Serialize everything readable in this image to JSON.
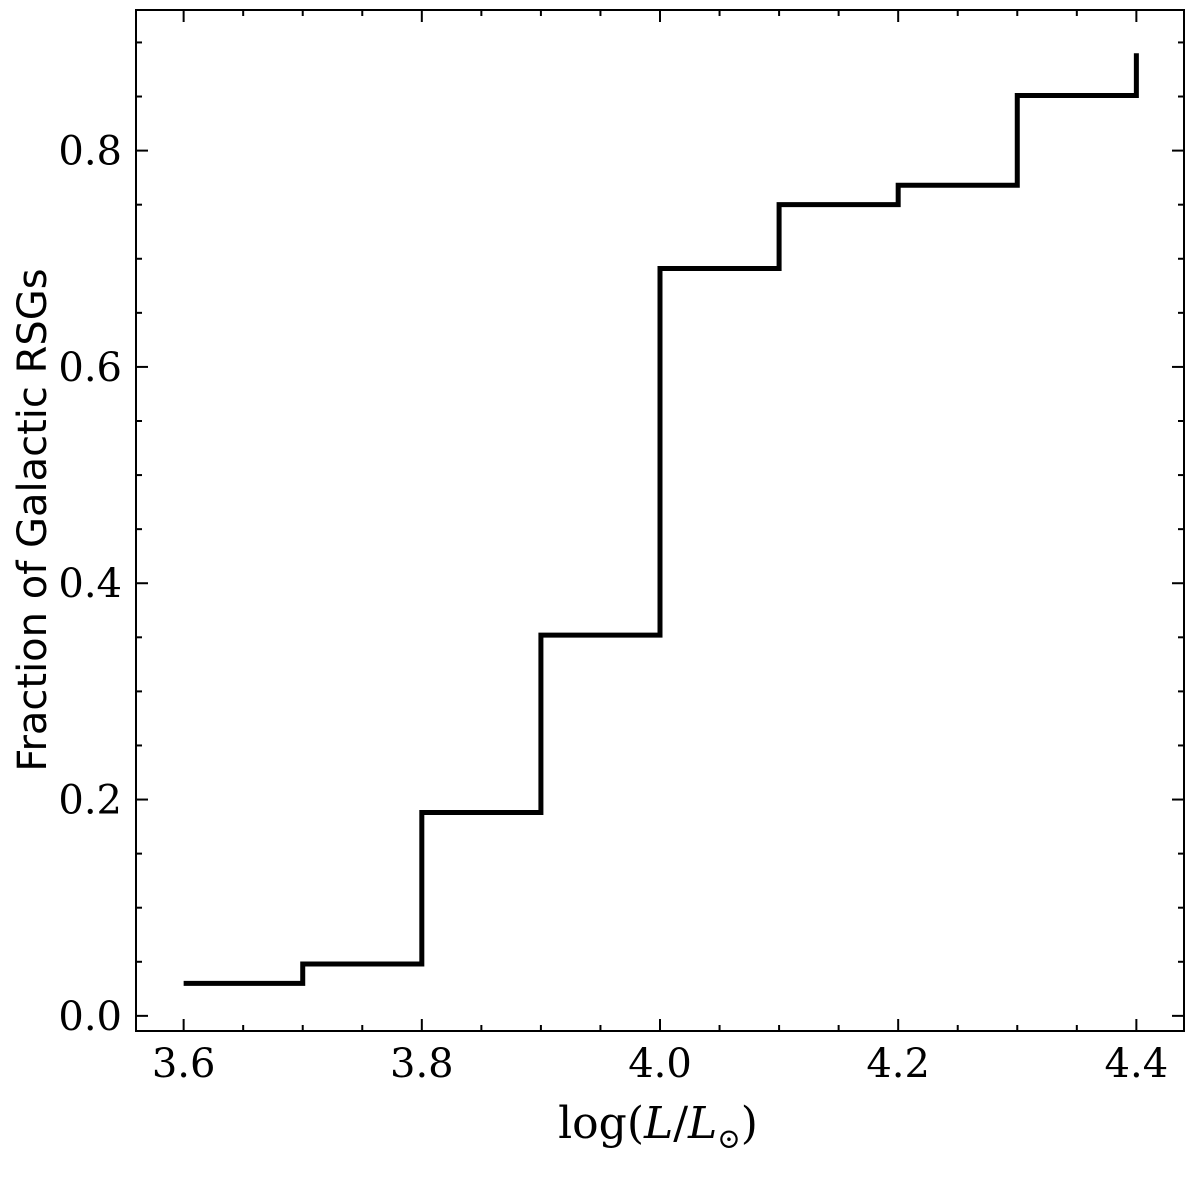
{
  "chart_data": {
    "type": "line",
    "drawstyle": "steps-post",
    "x": [
      3.6,
      3.7,
      3.8,
      3.9,
      4.0,
      4.1,
      4.2,
      4.3,
      4.4
    ],
    "series": [
      {
        "values": [
          0.03,
          0.048,
          0.188,
          0.352,
          0.691,
          0.75,
          0.768,
          0.851,
          0.89
        ]
      }
    ],
    "title": "",
    "xlabel_parts": {
      "prefix": "log(",
      "L": "L",
      "slash": "/",
      "Lsun": "L",
      "sun": "⊙",
      "suffix": ")"
    },
    "ylabel": "Fraction of Galactic RSGs",
    "xlim": [
      3.56,
      4.44
    ],
    "ylim": [
      -0.014,
      0.93
    ],
    "xticks": [
      {
        "value": 3.6,
        "label": "3.6"
      },
      {
        "value": 3.8,
        "label": "3.8"
      },
      {
        "value": 4.0,
        "label": "4.0"
      },
      {
        "value": 4.2,
        "label": "4.2"
      },
      {
        "value": 4.4,
        "label": "4.4"
      }
    ],
    "xminor": [
      3.65,
      3.7,
      3.75,
      3.85,
      3.9,
      3.95,
      4.05,
      4.1,
      4.15,
      4.25,
      4.3,
      4.35
    ],
    "yticks": [
      {
        "value": 0.0,
        "label": "0.0"
      },
      {
        "value": 0.2,
        "label": "0.2"
      },
      {
        "value": 0.4,
        "label": "0.4"
      },
      {
        "value": 0.6,
        "label": "0.6"
      },
      {
        "value": 0.8,
        "label": "0.8"
      }
    ],
    "yminor": [
      0.05,
      0.1,
      0.15,
      0.25,
      0.3,
      0.35,
      0.45,
      0.5,
      0.55,
      0.65,
      0.7,
      0.75,
      0.85,
      0.9
    ],
    "grid": false,
    "legend": "none",
    "line_color": "#000000"
  }
}
